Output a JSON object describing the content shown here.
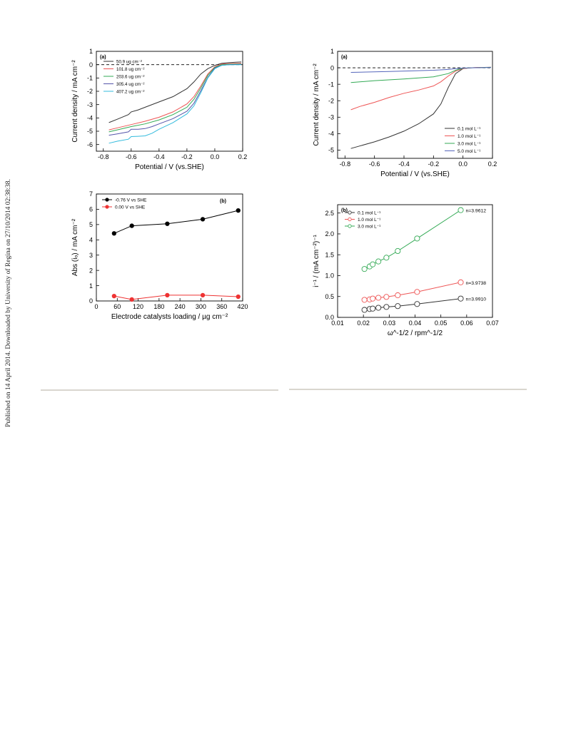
{
  "sidebar_text": "Published on 14 April 2014. Downloaded by University of Regina on 27/10/2014 02:38:38.",
  "chart_data": [
    {
      "id": "chart1",
      "type": "line",
      "panel": "(a)",
      "xlabel": "Potential / V (vs.SHE)",
      "ylabel": "Current density / mA cm⁻²",
      "xlim": [
        -0.85,
        0.2
      ],
      "ylim": [
        -6.5,
        1
      ],
      "xticks": [
        -0.8,
        -0.6,
        -0.4,
        -0.2,
        0.0,
        0.2
      ],
      "xtick_labels": [
        "-0.8",
        "-0.6",
        "-0.4",
        "-0.2",
        "0.0",
        "0.2"
      ],
      "yticks": [
        1,
        0,
        -1,
        -2,
        -3,
        -4,
        -5,
        -6
      ],
      "ytick_labels": [
        "1",
        "0",
        "-1",
        "-2",
        "-3",
        "-4",
        "-5",
        "-6"
      ],
      "reference_line": 0,
      "legend_position": "top-left",
      "series": [
        {
          "name": "50.9 ug cm⁻²",
          "color": "#333333",
          "x": [
            -0.76,
            -0.7,
            -0.62,
            -0.6,
            -0.55,
            -0.5,
            -0.4,
            -0.3,
            -0.2,
            -0.15,
            -0.1,
            -0.05,
            0.0,
            0.05,
            0.1,
            0.15,
            0.19
          ],
          "y": [
            -4.35,
            -4.1,
            -3.75,
            -3.55,
            -3.4,
            -3.2,
            -2.8,
            -2.4,
            -1.8,
            -1.3,
            -0.7,
            -0.3,
            -0.05,
            0.1,
            0.15,
            0.18,
            0.2
          ]
        },
        {
          "name": "101.8 ug cm⁻²",
          "color": "#ee5555",
          "x": [
            -0.76,
            -0.7,
            -0.6,
            -0.5,
            -0.4,
            -0.3,
            -0.2,
            -0.15,
            -0.1,
            -0.05,
            0.0,
            0.05,
            0.1,
            0.19
          ],
          "y": [
            -4.9,
            -4.75,
            -4.5,
            -4.25,
            -3.95,
            -3.55,
            -2.95,
            -2.4,
            -1.6,
            -0.7,
            -0.15,
            0.05,
            0.08,
            0.1
          ]
        },
        {
          "name": "203.6 ug cm⁻²",
          "color": "#33aa55",
          "x": [
            -0.76,
            -0.7,
            -0.6,
            -0.5,
            -0.4,
            -0.3,
            -0.2,
            -0.15,
            -0.1,
            -0.05,
            0.0,
            0.05,
            0.1,
            0.19
          ],
          "y": [
            -5.05,
            -4.9,
            -4.65,
            -4.45,
            -4.15,
            -3.75,
            -3.2,
            -2.6,
            -1.75,
            -0.8,
            -0.2,
            0.0,
            0.03,
            0.05
          ]
        },
        {
          "name": "305.4 ug cm⁻²",
          "color": "#5555aa",
          "x": [
            -0.76,
            -0.7,
            -0.62,
            -0.6,
            -0.55,
            -0.5,
            -0.45,
            -0.4,
            -0.3,
            -0.2,
            -0.15,
            -0.1,
            -0.05,
            0.0,
            0.05,
            0.1,
            0.19
          ],
          "y": [
            -5.3,
            -5.2,
            -5.05,
            -4.85,
            -4.85,
            -4.8,
            -4.65,
            -4.45,
            -4.05,
            -3.5,
            -2.9,
            -1.95,
            -0.95,
            -0.25,
            -0.05,
            0.0,
            0.02
          ]
        },
        {
          "name": "407.2 ug cm⁻²",
          "color": "#33bbdd",
          "x": [
            -0.76,
            -0.7,
            -0.62,
            -0.6,
            -0.55,
            -0.5,
            -0.45,
            -0.4,
            -0.3,
            -0.2,
            -0.15,
            -0.1,
            -0.05,
            0.0,
            0.05,
            0.1,
            0.19
          ],
          "y": [
            -5.9,
            -5.75,
            -5.6,
            -5.4,
            -5.38,
            -5.35,
            -5.15,
            -4.85,
            -4.35,
            -3.7,
            -3.1,
            -2.1,
            -1.0,
            -0.3,
            -0.05,
            0.0,
            0.0
          ]
        }
      ]
    },
    {
      "id": "chart2",
      "type": "line",
      "panel": "(a)",
      "xlabel": "Potential / V (vs.SHE)",
      "ylabel": "Current density / mA cm⁻²",
      "xlim": [
        -0.85,
        0.2
      ],
      "ylim": [
        -5.5,
        1
      ],
      "xticks": [
        -0.8,
        -0.6,
        -0.4,
        -0.2,
        0.0,
        0.2
      ],
      "xtick_labels": [
        "-0.8",
        "-0.6",
        "-0.4",
        "-0.2",
        "0.0",
        "0.2"
      ],
      "yticks": [
        1,
        0,
        -1,
        -2,
        -3,
        -4,
        -5
      ],
      "ytick_labels": [
        "1",
        "0",
        "-1",
        "-2",
        "-3",
        "-4",
        "-5"
      ],
      "reference_line": 0,
      "legend_position": "bottom-right",
      "series": [
        {
          "name": "0.1 mol L⁻¹",
          "color": "#333333",
          "x": [
            -0.76,
            -0.7,
            -0.6,
            -0.5,
            -0.4,
            -0.3,
            -0.2,
            -0.15,
            -0.1,
            -0.05,
            0.0,
            0.05,
            0.1,
            0.19
          ],
          "y": [
            -4.9,
            -4.75,
            -4.5,
            -4.2,
            -3.85,
            -3.4,
            -2.8,
            -2.2,
            -1.2,
            -0.35,
            -0.05,
            0.0,
            0.02,
            0.03
          ]
        },
        {
          "name": "1.0 mol L⁻¹",
          "color": "#ee5555",
          "x": [
            -0.76,
            -0.7,
            -0.6,
            -0.5,
            -0.4,
            -0.3,
            -0.2,
            -0.15,
            -0.1,
            -0.05,
            0.0,
            0.05,
            0.1,
            0.19
          ],
          "y": [
            -2.55,
            -2.35,
            -2.1,
            -1.8,
            -1.55,
            -1.35,
            -1.1,
            -0.85,
            -0.5,
            -0.2,
            -0.05,
            0.0,
            0.02,
            0.03
          ]
        },
        {
          "name": "3.0 mol L⁻¹",
          "color": "#33aa55",
          "x": [
            -0.76,
            -0.6,
            -0.4,
            -0.2,
            -0.1,
            -0.05,
            0.0,
            0.05,
            0.19
          ],
          "y": [
            -0.9,
            -0.78,
            -0.68,
            -0.55,
            -0.35,
            -0.15,
            -0.03,
            0.0,
            0.03
          ]
        },
        {
          "name": "5.0 mol L⁻¹",
          "color": "#5566bb",
          "x": [
            -0.76,
            -0.5,
            -0.2,
            -0.1,
            -0.05,
            0.0,
            0.05,
            0.19
          ],
          "y": [
            -0.28,
            -0.22,
            -0.15,
            -0.1,
            -0.05,
            -0.02,
            0.0,
            0.02
          ]
        }
      ]
    },
    {
      "id": "chart3",
      "type": "line",
      "panel": "(b)",
      "xlabel": "Electrode catalysts loading / µg cm⁻²",
      "ylabel": "Abs (iₒ) / mA cm⁻²",
      "xlim": [
        0,
        420
      ],
      "ylim": [
        0,
        7
      ],
      "xticks": [
        0,
        60,
        120,
        180,
        240,
        300,
        360,
        420
      ],
      "xtick_labels": [
        "0",
        "60",
        "120",
        "180",
        "240",
        "300",
        "360",
        "420"
      ],
      "yticks": [
        0,
        1,
        2,
        3,
        4,
        5,
        6,
        7
      ],
      "ytick_labels": [
        "0",
        "1",
        "2",
        "3",
        "4",
        "5",
        "6",
        "7"
      ],
      "legend_position": "top-left",
      "series": [
        {
          "name": "-0.76 V vs SHE",
          "color": "#000000",
          "x": [
            50.9,
            101.8,
            203.6,
            305.4,
            407.2
          ],
          "y": [
            4.42,
            4.92,
            5.05,
            5.35,
            5.92
          ]
        },
        {
          "name": "0.00 V vs SHE",
          "color": "#ee3333",
          "x": [
            50.9,
            101.8,
            203.6,
            305.4,
            407.2
          ],
          "y": [
            0.32,
            0.1,
            0.38,
            0.38,
            0.28
          ]
        }
      ]
    },
    {
      "id": "chart4",
      "type": "line",
      "panel": "(b)",
      "xlabel": "ω^-1/2 / rpm^-1/2",
      "ylabel": "i⁻¹ / (mA cm⁻²)⁻¹",
      "xlim": [
        0.01,
        0.07
      ],
      "ylim": [
        0,
        2.7
      ],
      "xticks": [
        0.01,
        0.02,
        0.03,
        0.04,
        0.05,
        0.06,
        0.07
      ],
      "xtick_labels": [
        "0.01",
        "0.02",
        "0.03",
        "0.04",
        "0.05",
        "0.06",
        "0.07"
      ],
      "yticks": [
        0.0,
        0.5,
        1.0,
        1.5,
        2.0,
        2.5
      ],
      "ytick_labels": [
        "0.0",
        "0.5",
        "1.0",
        "1.5",
        "2.0",
        "2.5"
      ],
      "legend_position": "top-left",
      "series": [
        {
          "name": "0.1 mol L⁻¹",
          "color": "#333333",
          "label": "n=3.9910",
          "x": [
            0.0204,
            0.0224,
            0.0236,
            0.0258,
            0.0289,
            0.0333,
            0.0408,
            0.0577
          ],
          "y": [
            0.18,
            0.2,
            0.21,
            0.23,
            0.25,
            0.27,
            0.32,
            0.45
          ]
        },
        {
          "name": "1.0 mol L⁻¹",
          "color": "#ee5555",
          "label": "n=3.9738",
          "x": [
            0.0204,
            0.0224,
            0.0236,
            0.0258,
            0.0289,
            0.0333,
            0.0408,
            0.0577
          ],
          "y": [
            0.42,
            0.43,
            0.45,
            0.47,
            0.49,
            0.53,
            0.61,
            0.84
          ]
        },
        {
          "name": "3.0 mol L⁻¹",
          "color": "#33aa55",
          "label": "n=3.9612",
          "x": [
            0.0204,
            0.0224,
            0.0236,
            0.0258,
            0.0289,
            0.0333,
            0.0408,
            0.0577
          ],
          "y": [
            1.16,
            1.22,
            1.27,
            1.34,
            1.43,
            1.59,
            1.89,
            2.57
          ]
        }
      ]
    }
  ]
}
